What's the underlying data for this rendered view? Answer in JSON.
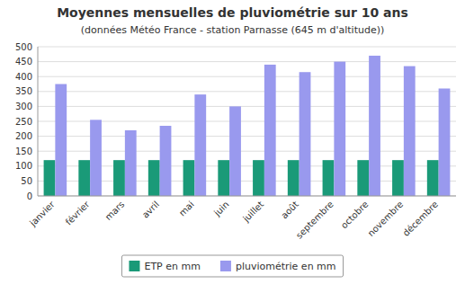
{
  "chart_data": {
    "type": "bar",
    "title": "Moyennes mensuelles de pluviométrie sur 10 ans",
    "subtitle": "(données Météo France - station Parnasse (645 m d'altitude))",
    "categories": [
      "janvier",
      "février",
      "mars",
      "avril",
      "mai",
      "juin",
      "juillet",
      "août",
      "septembre",
      "octobre",
      "novembre",
      "décembre"
    ],
    "series": [
      {
        "name": "ETP en mm",
        "color": "#1a9a78",
        "values": [
          120,
          120,
          120,
          120,
          120,
          120,
          120,
          120,
          120,
          120,
          120,
          120
        ]
      },
      {
        "name": "pluviométrie en mm",
        "color": "#9999ee",
        "values": [
          375,
          255,
          220,
          235,
          340,
          300,
          440,
          415,
          450,
          470,
          435,
          360
        ]
      }
    ],
    "ylim": [
      0,
      500
    ],
    "yticks": [
      0,
      50,
      100,
      150,
      200,
      250,
      300,
      350,
      400,
      450,
      500
    ],
    "grid": true,
    "legend": "bottom"
  }
}
